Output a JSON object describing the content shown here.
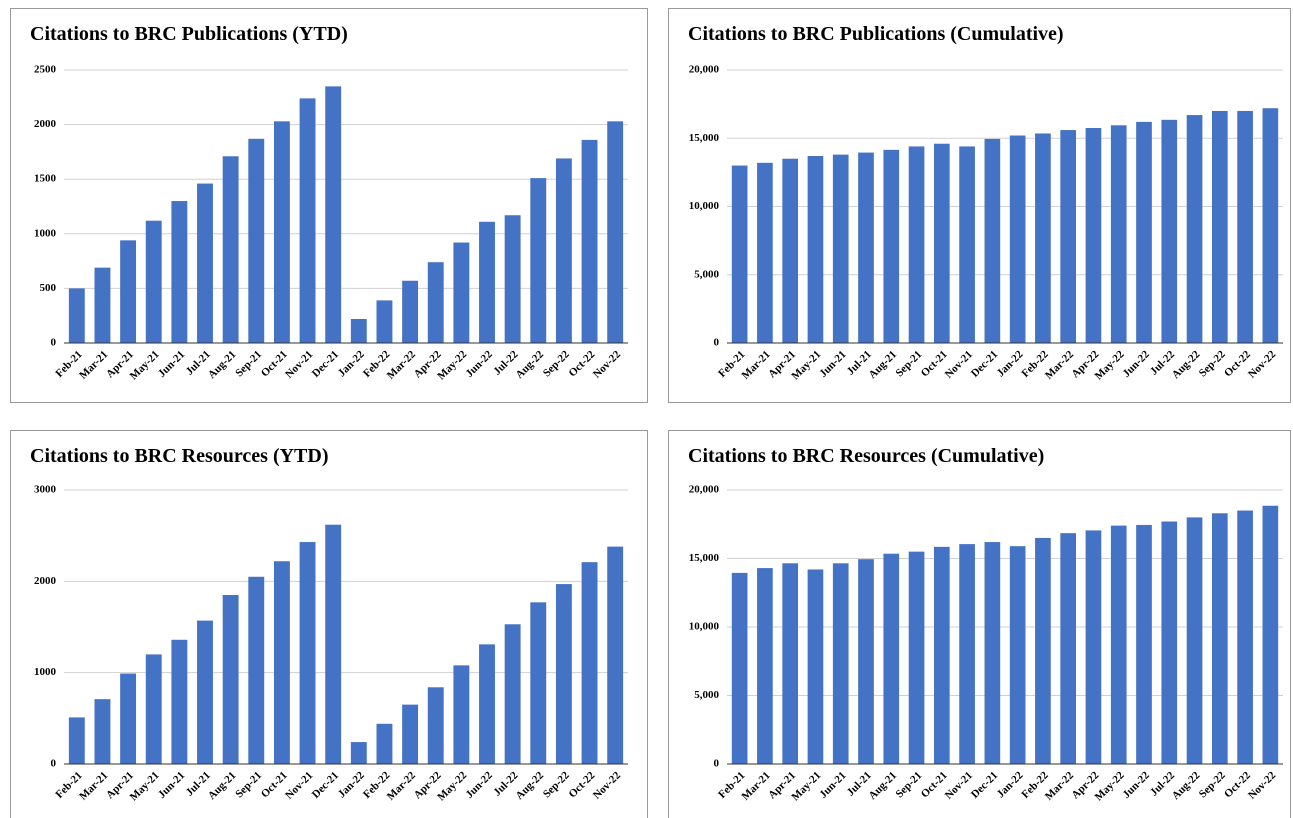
{
  "chart_data": [
    {
      "type": "bar",
      "title": "Citations to BRC Publications (YTD)",
      "color": "#4472c4",
      "grid": true,
      "categories": [
        "Feb-21",
        "Mar-21",
        "Apr-21",
        "May-21",
        "Jun-21",
        "Jul-21",
        "Aug-21",
        "Sep-21",
        "Oct-21",
        "Nov-21",
        "Dec-21",
        "Jan-22",
        "Feb-22",
        "Mar-22",
        "Apr-22",
        "May-22",
        "Jun-22",
        "Jul-22",
        "Aug-22",
        "Sep-22",
        "Oct-22",
        "Nov-22"
      ],
      "values": [
        500,
        690,
        940,
        1120,
        1300,
        1460,
        1710,
        1870,
        2030,
        2240,
        2350,
        220,
        390,
        570,
        740,
        920,
        1110,
        1170,
        1510,
        1690,
        1860,
        2030
      ],
      "ylim": [
        0,
        2500
      ],
      "yticks": [
        0,
        500,
        1000,
        1500,
        2000,
        2500
      ]
    },
    {
      "type": "bar",
      "title": "Citations to BRC Publications (Cumulative)",
      "color": "#4472c4",
      "grid": true,
      "categories": [
        "Feb-21",
        "Mar-21",
        "Apr-21",
        "May-21",
        "Jun-21",
        "Jul-21",
        "Aug-21",
        "Sep-21",
        "Oct-21",
        "Nov-21",
        "Dec-21",
        "Jan-22",
        "Feb-22",
        "Mar-22",
        "Apr-22",
        "May-22",
        "Jun-22",
        "Jul-22",
        "Aug-22",
        "Sep-22",
        "Oct-22",
        "Nov-22"
      ],
      "values": [
        13000,
        13200,
        13500,
        13700,
        13800,
        13950,
        14150,
        14400,
        14600,
        14400,
        14950,
        15200,
        15350,
        15600,
        15750,
        15950,
        16200,
        16350,
        16700,
        17000,
        17000,
        17200
      ],
      "ylim": [
        0,
        20000
      ],
      "yticks": [
        0,
        {
          "value": 5000,
          "label": "5,000"
        },
        {
          "value": 10000,
          "label": "10,000"
        },
        {
          "value": 15000,
          "label": "15,000"
        },
        {
          "value": 20000,
          "label": "20,000"
        }
      ]
    },
    {
      "type": "bar",
      "title": "Citations to BRC Resources (YTD)",
      "color": "#4472c4",
      "grid": true,
      "categories": [
        "Feb-21",
        "Mar-21",
        "Apr-21",
        "May-21",
        "Jun-21",
        "Jul-21",
        "Aug-21",
        "Sep-21",
        "Oct-21",
        "Nov-21",
        "Dec-21",
        "Jan-22",
        "Feb-22",
        "Mar-22",
        "Apr-22",
        "May-22",
        "Jun-22",
        "Jul-22",
        "Aug-22",
        "Sep-22",
        "Oct-22",
        "Nov-22"
      ],
      "values": [
        510,
        710,
        990,
        1200,
        1360,
        1570,
        1850,
        2050,
        2220,
        2430,
        2620,
        240,
        440,
        650,
        840,
        1080,
        1310,
        1530,
        1770,
        1970,
        2210,
        2380
      ],
      "ylim": [
        0,
        3000
      ],
      "yticks": [
        0,
        1000,
        2000,
        3000
      ]
    },
    {
      "type": "bar",
      "title": "Citations to BRC Resources (Cumulative)",
      "color": "#4472c4",
      "grid": true,
      "categories": [
        "Feb-21",
        "Mar-21",
        "Apr-21",
        "May-21",
        "Jun-21",
        "Jul-21",
        "Aug-21",
        "Sep-21",
        "Oct-21",
        "Nov-21",
        "Dec-21",
        "Jan-22",
        "Feb-22",
        "Mar-22",
        "Apr-22",
        "May-22",
        "Jun-22",
        "Jul-22",
        "Aug-22",
        "Sep-22",
        "Oct-22",
        "Nov-22"
      ],
      "values": [
        13950,
        14300,
        14650,
        14200,
        14650,
        14950,
        15350,
        15500,
        15850,
        16050,
        16200,
        15900,
        16500,
        16850,
        17050,
        17400,
        17450,
        17700,
        18000,
        18300,
        18500,
        18850
      ],
      "ylim": [
        0,
        20000
      ],
      "yticks": [
        0,
        {
          "value": 5000,
          "label": "5,000"
        },
        {
          "value": 10000,
          "label": "10,000"
        },
        {
          "value": 15000,
          "label": "15,000"
        },
        {
          "value": 20000,
          "label": "20,000"
        }
      ]
    }
  ]
}
